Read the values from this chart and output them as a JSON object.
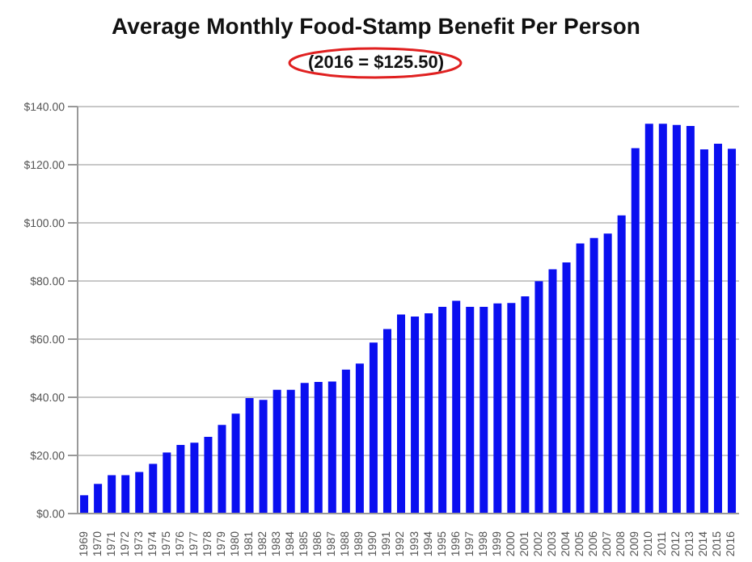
{
  "chart_data": {
    "type": "bar",
    "title": "Average Monthly Food-Stamp Benefit Per Person",
    "subtitle": "(2016 = $125.50)",
    "categories": [
      "1969",
      "1970",
      "1971",
      "1972",
      "1973",
      "1974",
      "1975",
      "1976",
      "1977",
      "1978",
      "1979",
      "1980",
      "1981",
      "1982",
      "1983",
      "1984",
      "1985",
      "1986",
      "1987",
      "1988",
      "1989",
      "1990",
      "1991",
      "1992",
      "1993",
      "1994",
      "1995",
      "1996",
      "1997",
      "1998",
      "1999",
      "2000",
      "2001",
      "2002",
      "2003",
      "2004",
      "2005",
      "2006",
      "2007",
      "2008",
      "2009",
      "2010",
      "2011",
      "2012",
      "2013",
      "2014",
      "2015",
      "2016"
    ],
    "values": [
      6.3,
      10.2,
      13.2,
      13.2,
      14.3,
      17.1,
      21.0,
      23.6,
      24.4,
      26.4,
      30.5,
      34.4,
      39.7,
      39.1,
      42.6,
      42.6,
      44.9,
      45.3,
      45.4,
      49.5,
      51.6,
      58.8,
      63.5,
      68.5,
      67.8,
      68.9,
      71.1,
      73.2,
      71.1,
      71.1,
      72.3,
      72.4,
      74.7,
      79.9,
      84.0,
      86.4,
      92.9,
      94.8,
      96.3,
      102.6,
      125.7,
      134.1,
      134.1,
      133.7,
      133.3,
      125.3,
      127.2,
      125.5
    ],
    "color": "#0a0ff0",
    "ylim": [
      0,
      140
    ],
    "yticks": [
      {
        "value": 0,
        "label": "$0.00"
      },
      {
        "value": 20,
        "label": "$20.00"
      },
      {
        "value": 40,
        "label": "$40.00"
      },
      {
        "value": 60,
        "label": "$60.00"
      },
      {
        "value": 80,
        "label": "$80.00"
      },
      {
        "value": 100,
        "label": "$100.00"
      },
      {
        "value": 120,
        "label": "$120.00"
      },
      {
        "value": 140,
        "label": "$140.00"
      }
    ],
    "grid": "y"
  }
}
